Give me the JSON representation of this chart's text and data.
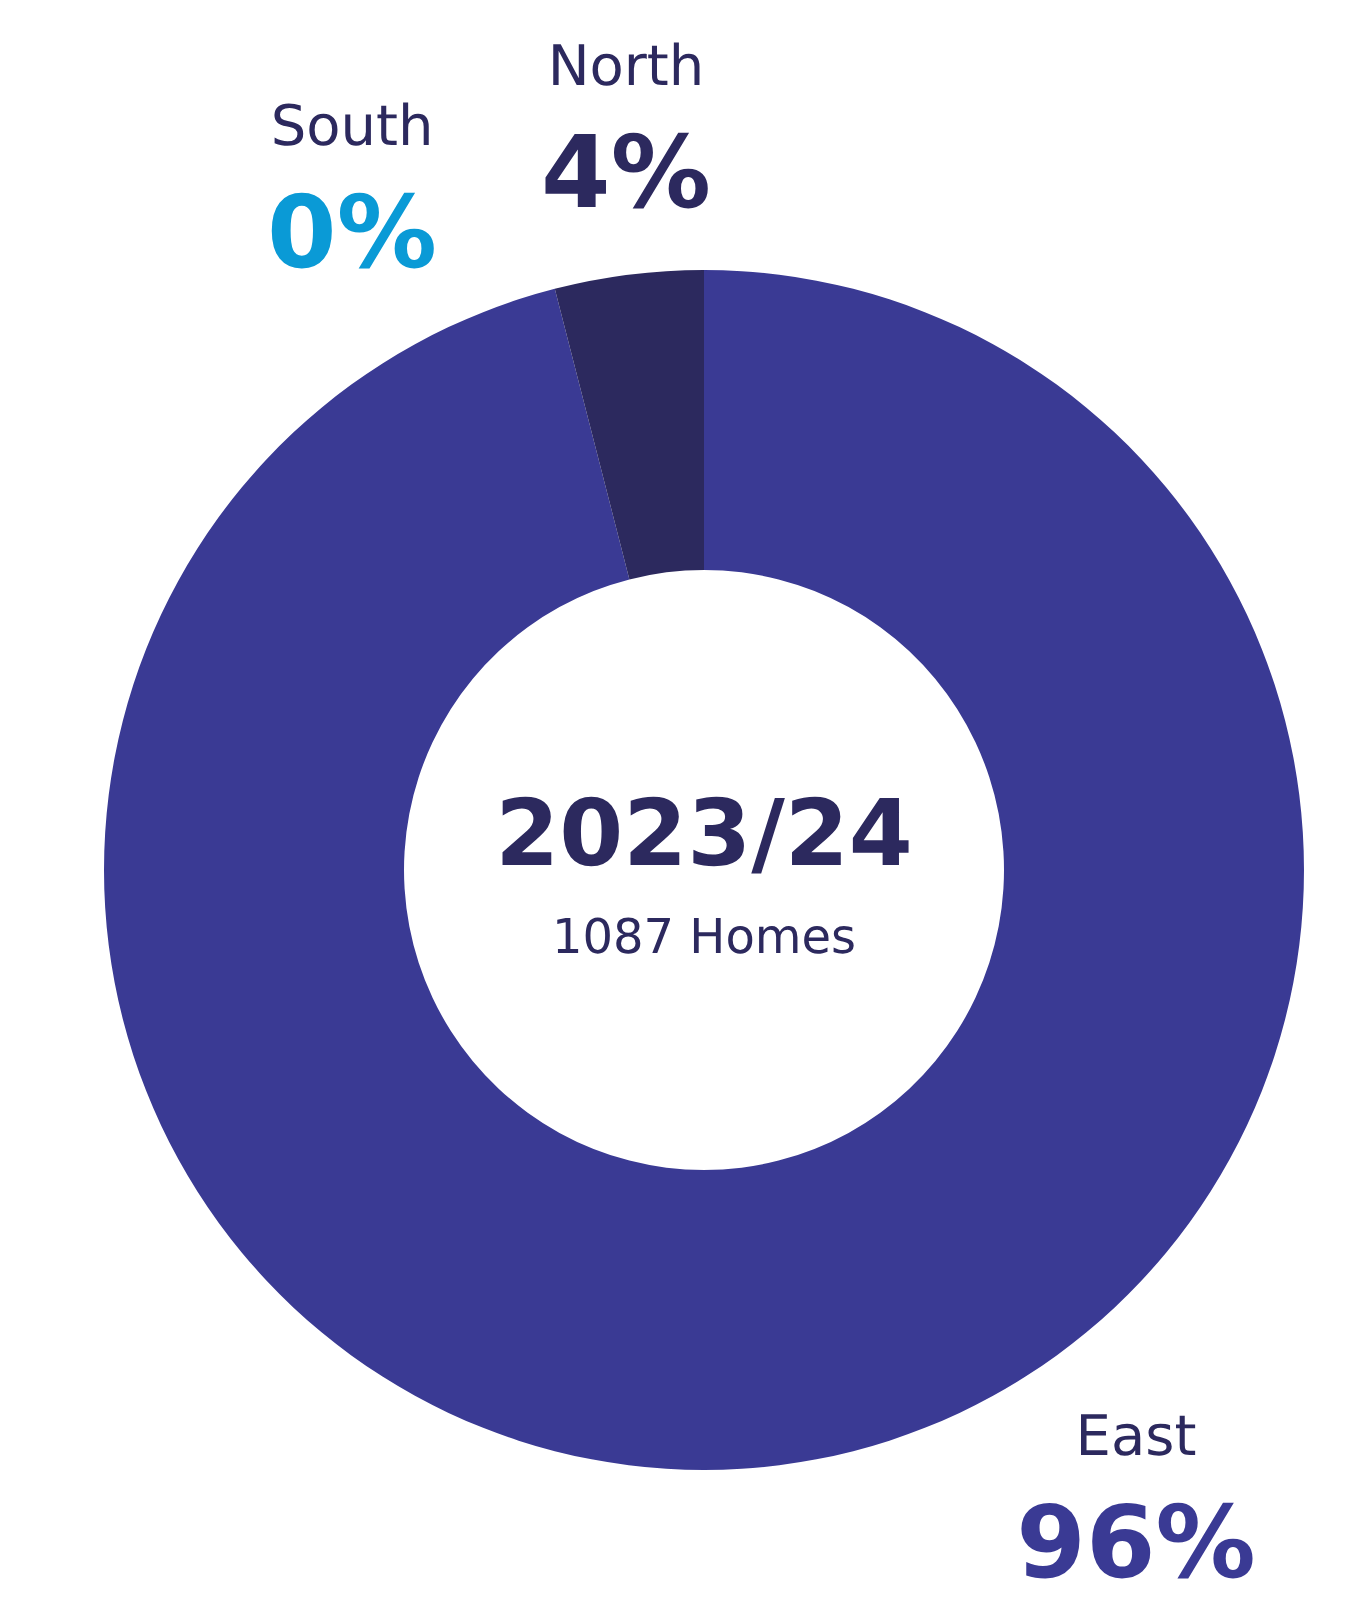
{
  "chart_data": {
    "type": "donut",
    "title": "2023/24",
    "subtitle": "1087 Homes",
    "categories": [
      "East",
      "South",
      "North"
    ],
    "values": [
      96,
      0,
      4
    ],
    "colors": [
      "#3a3a94",
      "#0a9ad6",
      "#2c295e"
    ],
    "value_labels": [
      "96%",
      "0%",
      "4%"
    ]
  }
}
